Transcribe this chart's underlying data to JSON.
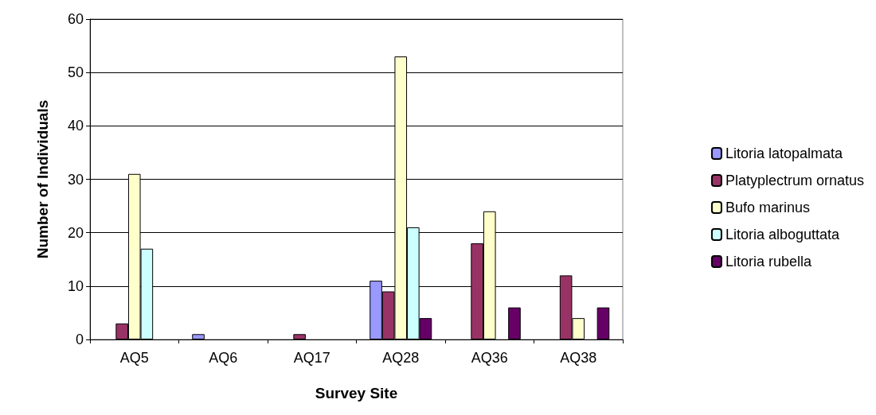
{
  "chart_data": {
    "type": "bar",
    "xlabel": "Survey Site",
    "ylabel": "Number of Individuals",
    "categories": [
      "AQ5",
      "AQ6",
      "AQ17",
      "AQ28",
      "AQ36",
      "AQ38"
    ],
    "series": [
      {
        "name": "Litoria latopalmata",
        "color": "#9999ff",
        "values": [
          0,
          1,
          0,
          11,
          0,
          0
        ]
      },
      {
        "name": "Platyplectrum ornatus",
        "color": "#993366",
        "values": [
          3,
          0,
          1,
          9,
          18,
          12
        ]
      },
      {
        "name": "Bufo marinus",
        "color": "#ffffcc",
        "values": [
          31,
          0,
          0,
          53,
          24,
          4
        ]
      },
      {
        "name": "Litoria alboguttata",
        "color": "#ccffff",
        "values": [
          17,
          0,
          0,
          21,
          0,
          0
        ]
      },
      {
        "name": "Litoria rubella",
        "color": "#660066",
        "values": [
          0,
          0,
          0,
          4,
          6,
          6
        ]
      }
    ],
    "ylim": [
      0,
      60
    ],
    "yticks": [
      0,
      10,
      20,
      30,
      40,
      50,
      60
    ],
    "grid": "y",
    "legend": "right"
  }
}
